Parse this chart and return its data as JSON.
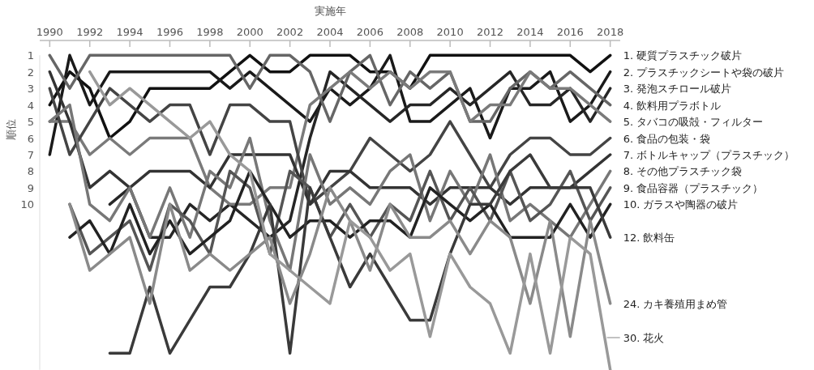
{
  "chart_data": {
    "type": "line",
    "xlabel": "実施年",
    "ylabel": "順位",
    "x": [
      1990,
      1991,
      1992,
      1993,
      1994,
      1995,
      1996,
      1997,
      1998,
      1999,
      2000,
      2001,
      2002,
      2003,
      2004,
      2005,
      2006,
      2007,
      2008,
      2009,
      2010,
      2011,
      2012,
      2013,
      2014,
      2015,
      2016,
      2017,
      2018
    ],
    "xlim": [
      1989.5,
      2018.5
    ],
    "xticks": [
      1990,
      1992,
      1994,
      1996,
      1998,
      2000,
      2002,
      2004,
      2006,
      2008,
      2010,
      2012,
      2014,
      2016,
      2018
    ],
    "ylim": [
      20,
      1
    ],
    "yticks": [
      1,
      2,
      3,
      4,
      5,
      6,
      7,
      8,
      9,
      10
    ],
    "series": [
      {
        "name": "1. 硬質プラスチック破片",
        "color": "#111111",
        "values": [
          4,
          2,
          3,
          6,
          5,
          3,
          3,
          3,
          3,
          2,
          1,
          2,
          2,
          1,
          1,
          1,
          2,
          2,
          3,
          1,
          1,
          1,
          1,
          1,
          1,
          1,
          1,
          2,
          1
        ]
      },
      {
        "name": "2. プラスチックシートや袋の破片",
        "color": "#1a1a1a",
        "values": [
          7,
          1,
          4,
          2,
          2,
          2,
          2,
          2,
          2,
          3,
          2,
          3,
          4,
          5,
          3,
          4,
          3,
          1,
          5,
          5,
          4,
          3,
          6,
          3,
          3,
          2,
          5,
          4,
          2
        ]
      },
      {
        "name": "3. 発泡スチロール破片",
        "color": "#262626",
        "values": [
          null,
          null,
          null,
          10,
          9,
          12,
          12,
          10,
          11,
          10,
          11,
          12,
          11,
          6,
          2,
          3,
          4,
          5,
          4,
          4,
          3,
          4,
          3,
          2,
          4,
          4,
          3,
          5,
          3
        ]
      },
      {
        "name": "4. 飲料用プラボトル",
        "color": "#666666",
        "values": [
          1,
          3,
          1,
          1,
          1,
          1,
          1,
          1,
          1,
          1,
          3,
          1,
          1,
          2,
          5,
          2,
          1,
          4,
          2,
          3,
          2,
          5,
          5,
          3,
          2,
          3,
          2,
          3,
          4
        ]
      },
      {
        "name": "5. タバコの吸殻・フィルター",
        "color": "#7a7a7a",
        "values": [
          5,
          5,
          7,
          6,
          7,
          6,
          6,
          6,
          9,
          10,
          10,
          9,
          9,
          4,
          3,
          2,
          3,
          2,
          3,
          2,
          2,
          5,
          4,
          4,
          2,
          3,
          3,
          4,
          5
        ]
      },
      {
        "name": "6. 食品の包装・袋",
        "color": "#444444",
        "values": [
          3,
          7,
          5,
          3,
          4,
          5,
          4,
          4,
          7,
          4,
          4,
          5,
          5,
          10,
          9,
          8,
          6,
          7,
          8,
          7,
          5,
          7,
          9,
          7,
          6,
          6,
          7,
          7,
          6
        ]
      },
      {
        "name": "7. ボトルキャップ（プラスチック）",
        "color": "#333333",
        "values": [
          2,
          5,
          9,
          8,
          9,
          8,
          8,
          8,
          9,
          7,
          7,
          7,
          7,
          10,
          8,
          8,
          9,
          9,
          9,
          10,
          9,
          9,
          9,
          10,
          9,
          9,
          9,
          8,
          7
        ]
      },
      {
        "name": "8. その他プラスチック袋",
        "color": "#777777",
        "values": [
          5,
          4,
          10,
          11,
          9,
          12,
          9,
          12,
          8,
          9,
          6,
          11,
          14,
          7,
          10,
          9,
          10,
          8,
          7,
          11,
          8,
          10,
          7,
          11,
          10,
          11,
          12,
          10,
          8
        ]
      },
      {
        "name": "9. 食品容器（プラスチック）",
        "color": "#555555",
        "values": [
          null,
          10,
          13,
          12,
          11,
          14,
          10,
          11,
          13,
          8,
          9,
          13,
          8,
          9,
          12,
          10,
          12,
          10,
          11,
          8,
          11,
          9,
          11,
          8,
          11,
          10,
          8,
          11,
          9
        ]
      },
      {
        "name": "10. ガラスや陶器の破片",
        "color": "#222222",
        "values": [
          null,
          12,
          11,
          13,
          10,
          13,
          11,
          13,
          12,
          11,
          8,
          10,
          12,
          11,
          11,
          12,
          11,
          11,
          12,
          9,
          10,
          11,
          10,
          12,
          12,
          12,
          10,
          12,
          10
        ]
      },
      {
        "name": "12. 飲料缶",
        "color": "#3a3a3a",
        "values": [
          null,
          null,
          null,
          19,
          19,
          15,
          19,
          17,
          15,
          15,
          13,
          10,
          19,
          9,
          12,
          15,
          13,
          15,
          17,
          17,
          13,
          10,
          10,
          8,
          7,
          9,
          9,
          9,
          12
        ]
      },
      {
        "name": "24. カキ養殖用まめ管",
        "color": "#8a8a8a",
        "values": [
          null,
          10,
          14,
          13,
          12,
          16,
          10,
          14,
          13,
          14,
          13,
          12,
          16,
          13,
          9,
          11,
          14,
          10,
          12,
          12,
          11,
          13,
          11,
          12,
          16,
          11,
          18,
          11,
          16
        ]
      },
      {
        "name": "30. 花火",
        "color": "#999999",
        "values": [
          null,
          null,
          2,
          4,
          3,
          4,
          5,
          6,
          5,
          7,
          8,
          13,
          14,
          15,
          16,
          11,
          12,
          14,
          13,
          18,
          13,
          15,
          16,
          19,
          13,
          19,
          12,
          13,
          20
        ]
      }
    ]
  }
}
